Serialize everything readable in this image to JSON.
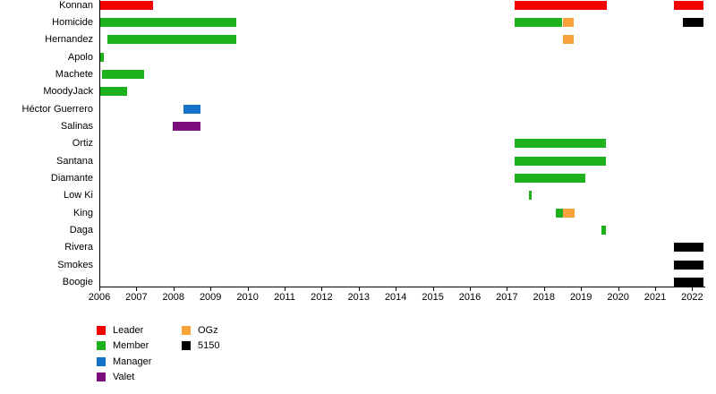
{
  "page": {
    "background": "#ffffff"
  },
  "chart_data": {
    "type": "bar",
    "subtype": "timeline-gantt",
    "title": "",
    "xlabel": "",
    "ylabel": "",
    "x_axis": {
      "min": 2006,
      "max": 2022.35,
      "tick_step": 1,
      "ticks": [
        2006,
        2007,
        2008,
        2009,
        2010,
        2011,
        2012,
        2013,
        2014,
        2015,
        2016,
        2017,
        2018,
        2019,
        2020,
        2021,
        2022
      ]
    },
    "grid": "off",
    "legend_position": "bottom-left",
    "roles": {
      "leader": "#f40000",
      "member": "#1db21d",
      "manager": "#1273c9",
      "valet": "#7c0d7c",
      "ogz": "#f9a13b",
      "5150": "#000000"
    },
    "legend": {
      "columns": [
        [
          {
            "label": "Leader",
            "role": "leader"
          },
          {
            "label": "Member",
            "role": "member"
          },
          {
            "label": "Manager",
            "role": "manager"
          },
          {
            "label": "Valet",
            "role": "valet"
          }
        ],
        [
          {
            "label": "OGz",
            "role": "ogz"
          },
          {
            "label": "5150",
            "role": "5150"
          }
        ]
      ]
    },
    "members": [
      {
        "name": "Konnan",
        "bars": [
          {
            "start": 2006.0,
            "end": 2007.45,
            "role": "leader"
          },
          {
            "start": 2017.2,
            "end": 2019.7,
            "role": "leader"
          },
          {
            "start": 2021.5,
            "end": 2022.3,
            "role": "leader"
          }
        ]
      },
      {
        "name": "Homicide",
        "bars": [
          {
            "start": 2006.0,
            "end": 2009.7,
            "role": "member"
          },
          {
            "start": 2017.2,
            "end": 2018.5,
            "role": "member"
          },
          {
            "start": 2018.5,
            "end": 2018.8,
            "role": "ogz"
          },
          {
            "start": 2021.75,
            "end": 2022.3,
            "role": "5150"
          }
        ]
      },
      {
        "name": "Hernandez",
        "bars": [
          {
            "start": 2006.22,
            "end": 2009.7,
            "role": "member"
          },
          {
            "start": 2018.5,
            "end": 2018.8,
            "role": "ogz"
          }
        ]
      },
      {
        "name": "Apolo",
        "bars": [
          {
            "start": 2006.0,
            "end": 2006.11,
            "role": "member"
          }
        ]
      },
      {
        "name": "Machete",
        "bars": [
          {
            "start": 2006.08,
            "end": 2007.21,
            "role": "member"
          }
        ]
      },
      {
        "name": "MoodyJack",
        "bars": [
          {
            "start": 2006.03,
            "end": 2006.75,
            "role": "member"
          }
        ]
      },
      {
        "name": "Héctor Guerrero",
        "bars": [
          {
            "start": 2008.27,
            "end": 2008.73,
            "role": "manager"
          }
        ]
      },
      {
        "name": "Salinas",
        "bars": [
          {
            "start": 2007.97,
            "end": 2008.73,
            "role": "valet"
          }
        ]
      },
      {
        "name": "Ortiz",
        "bars": [
          {
            "start": 2017.2,
            "end": 2019.67,
            "role": "member"
          }
        ]
      },
      {
        "name": "Santana",
        "bars": [
          {
            "start": 2017.2,
            "end": 2019.67,
            "role": "member"
          }
        ]
      },
      {
        "name": "Diamante",
        "bars": [
          {
            "start": 2017.2,
            "end": 2019.12,
            "role": "member"
          }
        ]
      },
      {
        "name": "Low Ki",
        "bars": [
          {
            "start": 2017.59,
            "end": 2017.67,
            "role": "member"
          }
        ]
      },
      {
        "name": "King",
        "bars": [
          {
            "start": 2018.32,
            "end": 2018.51,
            "role": "member"
          },
          {
            "start": 2018.51,
            "end": 2018.83,
            "role": "ogz"
          }
        ]
      },
      {
        "name": "Daga",
        "bars": [
          {
            "start": 2019.55,
            "end": 2019.67,
            "role": "member"
          }
        ]
      },
      {
        "name": "Rivera",
        "bars": [
          {
            "start": 2021.5,
            "end": 2022.3,
            "role": "5150"
          }
        ]
      },
      {
        "name": "Smokes",
        "bars": [
          {
            "start": 2021.5,
            "end": 2022.3,
            "role": "5150"
          }
        ]
      },
      {
        "name": "Boogie",
        "bars": [
          {
            "start": 2021.5,
            "end": 2022.3,
            "role": "5150"
          }
        ]
      }
    ]
  }
}
